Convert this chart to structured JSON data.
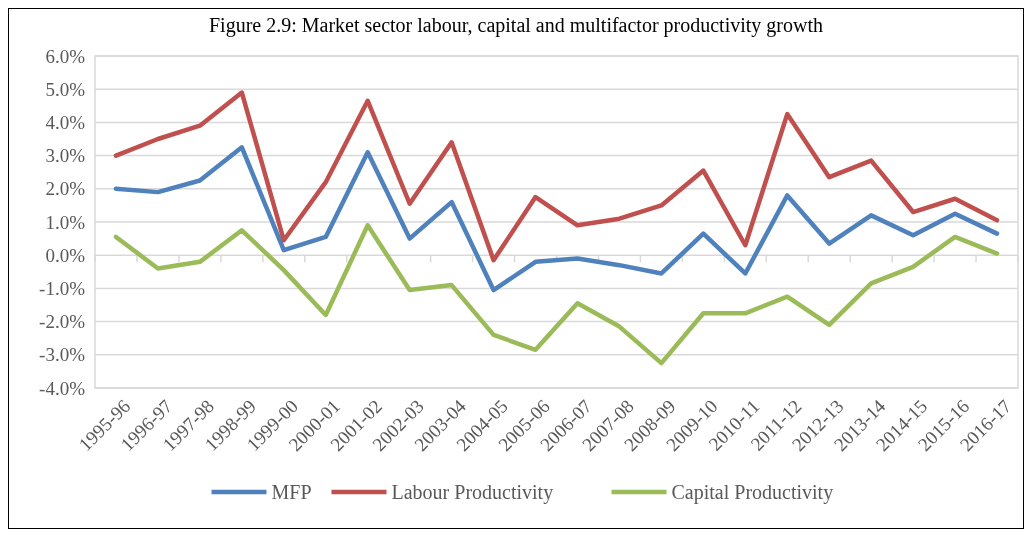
{
  "chart_data": {
    "type": "line",
    "title": "Figure 2.9: Market sector labour, capital and multifactor productivity growth",
    "categories": [
      "1995-96",
      "1996-97",
      "1997-98",
      "1998-99",
      "1999-00",
      "2000-01",
      "2001-02",
      "2002-03",
      "2003-04",
      "2004-05",
      "2005-06",
      "2006-07",
      "2007-08",
      "2008-09",
      "2009-10",
      "2010-11",
      "2011-12",
      "2012-13",
      "2013-14",
      "2014-15",
      "2015-16",
      "2016-17"
    ],
    "series": [
      {
        "name": "MFP",
        "color": "#4f81bd",
        "values": [
          2.0,
          1.9,
          2.25,
          3.25,
          0.15,
          0.55,
          3.1,
          0.5,
          1.6,
          -1.05,
          -0.2,
          -0.1,
          -0.3,
          -0.55,
          0.65,
          -0.55,
          1.8,
          0.35,
          1.2,
          0.6,
          1.25,
          0.65
        ]
      },
      {
        "name": "Labour Productivity",
        "color": "#c0504d",
        "values": [
          3.0,
          3.5,
          3.9,
          4.9,
          0.45,
          2.2,
          4.65,
          1.55,
          3.4,
          -0.15,
          1.75,
          0.9,
          1.1,
          1.5,
          2.55,
          0.3,
          4.25,
          2.35,
          2.85,
          1.3,
          1.7,
          1.05
        ]
      },
      {
        "name": "Capital Productivity",
        "color": "#9bbb59",
        "values": [
          0.55,
          -0.4,
          -0.2,
          0.75,
          -0.45,
          -1.8,
          0.9,
          -1.05,
          -0.9,
          -2.4,
          -2.85,
          -1.45,
          -2.15,
          -3.25,
          -1.75,
          -1.75,
          -1.25,
          -2.1,
          -0.85,
          -0.35,
          0.55,
          0.05
        ]
      }
    ],
    "ylim": [
      -4,
      6
    ],
    "yticks": [
      {
        "value": -4,
        "label": "-4.0%"
      },
      {
        "value": -3,
        "label": "-3.0%"
      },
      {
        "value": -2,
        "label": "-2.0%"
      },
      {
        "value": -1,
        "label": "-1.0%"
      },
      {
        "value": 0,
        "label": "0.0%"
      },
      {
        "value": 1,
        "label": "1.0%"
      },
      {
        "value": 2,
        "label": "2.0%"
      },
      {
        "value": 3,
        "label": "3.0%"
      },
      {
        "value": 4,
        "label": "4.0%"
      },
      {
        "value": 5,
        "label": "5.0%"
      },
      {
        "value": 6,
        "label": "6.0%"
      }
    ],
    "grid": "y",
    "legend": "bottom",
    "marker": "none",
    "line_style": "solid"
  }
}
